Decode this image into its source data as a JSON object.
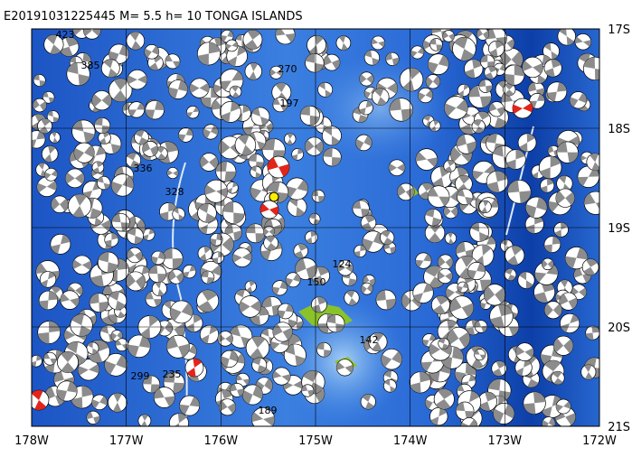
{
  "header": {
    "title": "E20191031225445 M= 5.5 h= 10 TONGA ISLANDS"
  },
  "axes": {
    "longitude": [
      "178W",
      "177W",
      "176W",
      "175W",
      "174W",
      "173W",
      "172W"
    ],
    "latitude": [
      "17S",
      "18S",
      "19S",
      "20S",
      "21S"
    ]
  },
  "events": {
    "labels": [
      "423",
      "385",
      "270",
      "197",
      "336",
      "328",
      "299",
      "235",
      "150",
      "124",
      "142",
      "189"
    ]
  }
}
